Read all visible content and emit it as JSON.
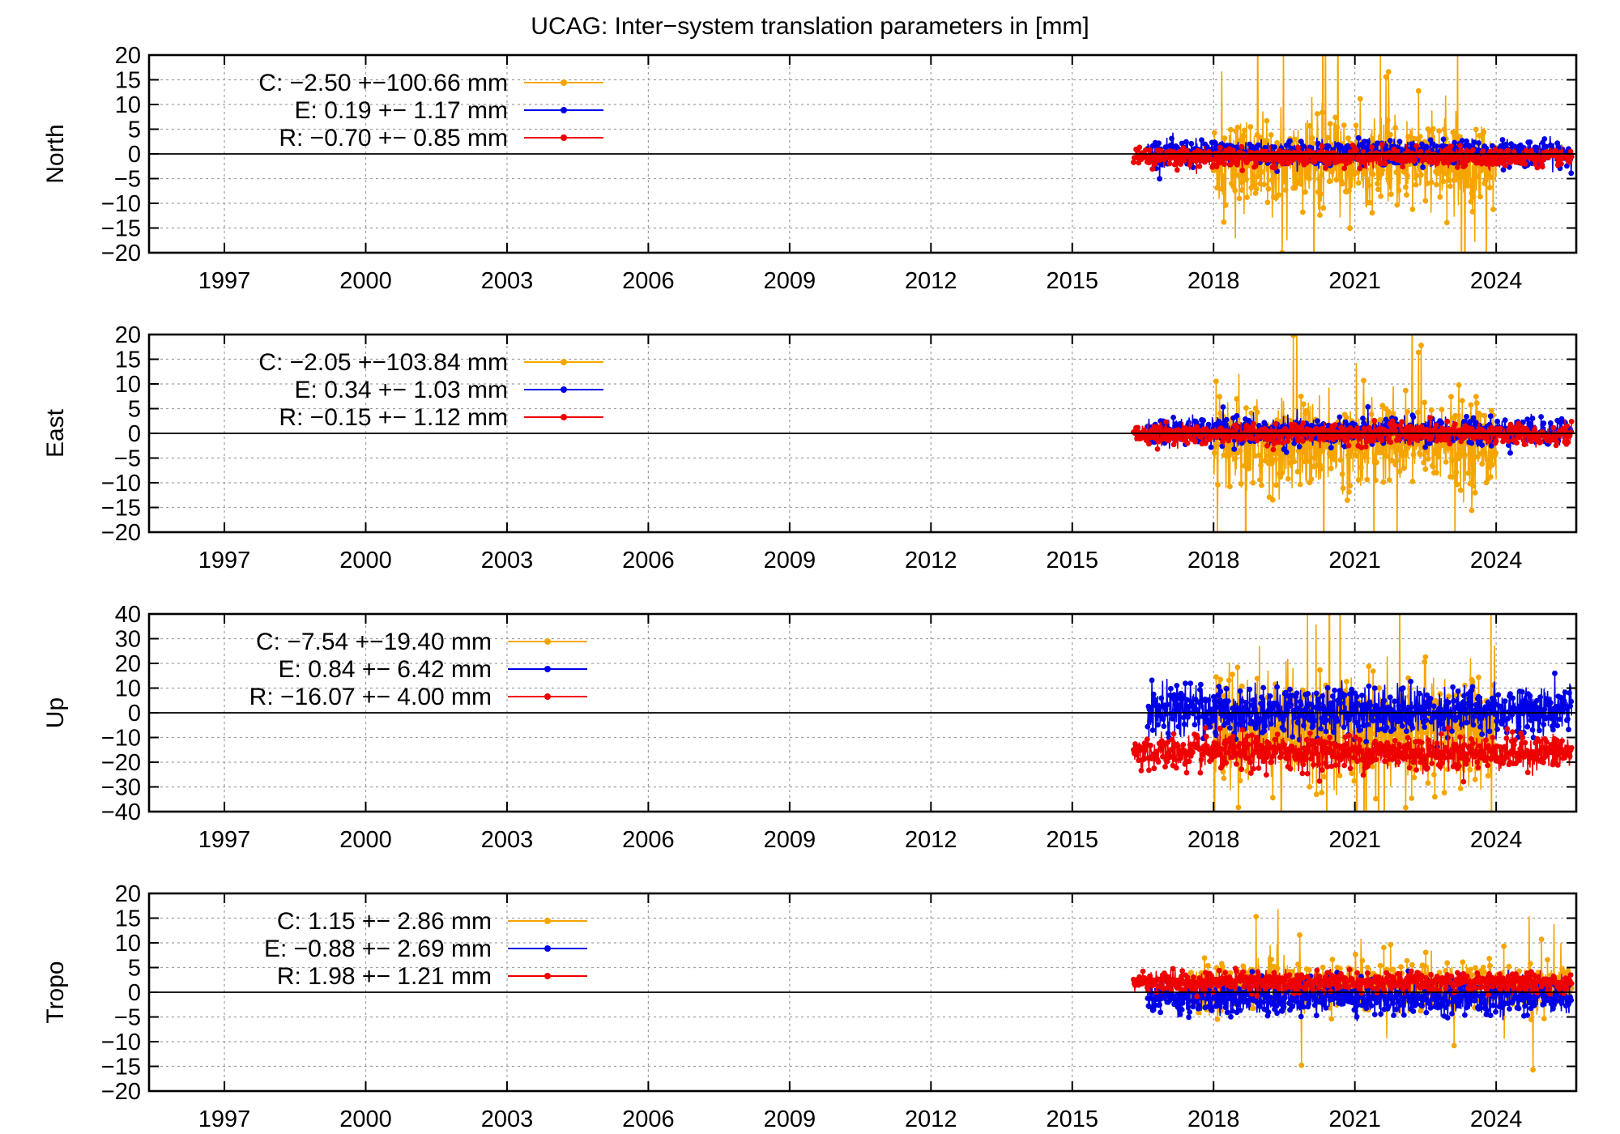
{
  "title": "UCAG: Inter−system translation parameters in [mm]",
  "colors": {
    "C": "#f5a500",
    "E": "#0000e6",
    "R": "#ee0000",
    "axis": "#000000",
    "grid": "#a0a0a0"
  },
  "x_axis": {
    "min": 1995.4,
    "max": 2025.7,
    "ticks": [
      1997,
      2000,
      2003,
      2006,
      2009,
      2012,
      2015,
      2018,
      2021,
      2024
    ]
  },
  "chart_data": [
    {
      "type": "line",
      "ylabel": "North",
      "ylim": [
        -20,
        20
      ],
      "yticks": [
        20,
        15,
        10,
        5,
        0,
        -5,
        -10,
        -15,
        -20
      ],
      "tick_labels": [
        "20",
        "15",
        "10",
        "5",
        "0",
        "−5",
        "−10",
        "−15",
        "−20"
      ],
      "legend": [
        {
          "key": "C",
          "label": "C:  −2.50 +−100.66 mm"
        },
        {
          "key": "E",
          "label": "E:  0.19 +− 1.17 mm"
        },
        {
          "key": "R",
          "label": "R:  −0.70 +− 0.85 mm"
        }
      ],
      "series": [
        {
          "name": "C",
          "mean": -2.5,
          "sigma": 100.66,
          "start": 2018.0,
          "end": 2024.0,
          "noise": 4.5,
          "offset": 0.5
        },
        {
          "name": "E",
          "mean": 0.19,
          "sigma": 1.17,
          "start": 2016.6,
          "end": 2025.6,
          "noise": 1.3,
          "offset": 0
        },
        {
          "name": "R",
          "mean": -0.7,
          "sigma": 0.85,
          "start": 2016.3,
          "end": 2025.6,
          "noise": 0.9,
          "offset": 0
        }
      ]
    },
    {
      "type": "line",
      "ylabel": "East",
      "ylim": [
        -20,
        20
      ],
      "yticks": [
        20,
        15,
        10,
        5,
        0,
        -5,
        -10,
        -15,
        -20
      ],
      "tick_labels": [
        "20",
        "15",
        "10",
        "5",
        "0",
        "−5",
        "−10",
        "−15",
        "−20"
      ],
      "legend": [
        {
          "key": "C",
          "label": "C:  −2.05 +−103.84 mm"
        },
        {
          "key": "E",
          "label": "E:  0.34 +− 1.03 mm"
        },
        {
          "key": "R",
          "label": "R:  −0.15 +− 1.12 mm"
        }
      ],
      "series": [
        {
          "name": "C",
          "mean": -2.05,
          "sigma": 103.84,
          "start": 2018.0,
          "end": 2024.0,
          "noise": 4.5,
          "offset": 0
        },
        {
          "name": "E",
          "mean": 0.34,
          "sigma": 1.03,
          "start": 2016.6,
          "end": 2025.6,
          "noise": 1.4,
          "offset": 0
        },
        {
          "name": "R",
          "mean": -0.15,
          "sigma": 1.12,
          "start": 2016.3,
          "end": 2025.6,
          "noise": 1.0,
          "offset": 0
        }
      ]
    },
    {
      "type": "line",
      "ylabel": "Up",
      "ylim": [
        -40,
        40
      ],
      "yticks": [
        40,
        30,
        20,
        10,
        0,
        -10,
        -20,
        -30,
        -40
      ],
      "tick_labels": [
        "40",
        "30",
        "20",
        "10",
        "0",
        "−10",
        "−20",
        "−30",
        "−40"
      ],
      "legend": [
        {
          "key": "C",
          "label": "C:  −7.54 +−19.40 mm"
        },
        {
          "key": "E",
          "label": "E:  0.84 +− 6.42 mm"
        },
        {
          "key": "R",
          "label": "R: −16.07 +− 4.00 mm"
        }
      ],
      "series": [
        {
          "name": "C",
          "mean": -7.54,
          "sigma": 19.4,
          "start": 2018.0,
          "end": 2024.0,
          "noise": 11,
          "offset": 0
        },
        {
          "name": "E",
          "mean": 0.84,
          "sigma": 6.42,
          "start": 2016.6,
          "end": 2025.6,
          "noise": 5,
          "offset": 0
        },
        {
          "name": "R",
          "mean": -16.07,
          "sigma": 4.0,
          "start": 2016.3,
          "end": 2025.6,
          "noise": 3.5,
          "offset": 0
        }
      ]
    },
    {
      "type": "line",
      "ylabel": "Tropo",
      "ylim": [
        -20,
        20
      ],
      "yticks": [
        20,
        15,
        10,
        5,
        0,
        -5,
        -10,
        -15,
        -20
      ],
      "tick_labels": [
        "20",
        "15",
        "10",
        "5",
        "0",
        "−5",
        "−10",
        "−15",
        "−20"
      ],
      "legend": [
        {
          "key": "C",
          "label": "C:   1.15 +− 2.86 mm"
        },
        {
          "key": "E",
          "label": "E: −0.88 +− 2.69 mm"
        },
        {
          "key": "R",
          "label": "R:   1.98 +− 1.21 mm"
        }
      ],
      "series": [
        {
          "name": "C",
          "mean": 1.15,
          "sigma": 2.86,
          "start": 2017.5,
          "end": 2025.6,
          "noise": 2.2,
          "offset": 0
        },
        {
          "name": "E",
          "mean": -0.88,
          "sigma": 2.69,
          "start": 2016.6,
          "end": 2025.6,
          "noise": 1.8,
          "offset": 0
        },
        {
          "name": "R",
          "mean": 1.98,
          "sigma": 1.21,
          "start": 2016.3,
          "end": 2025.6,
          "noise": 1.0,
          "offset": 0
        }
      ]
    }
  ]
}
